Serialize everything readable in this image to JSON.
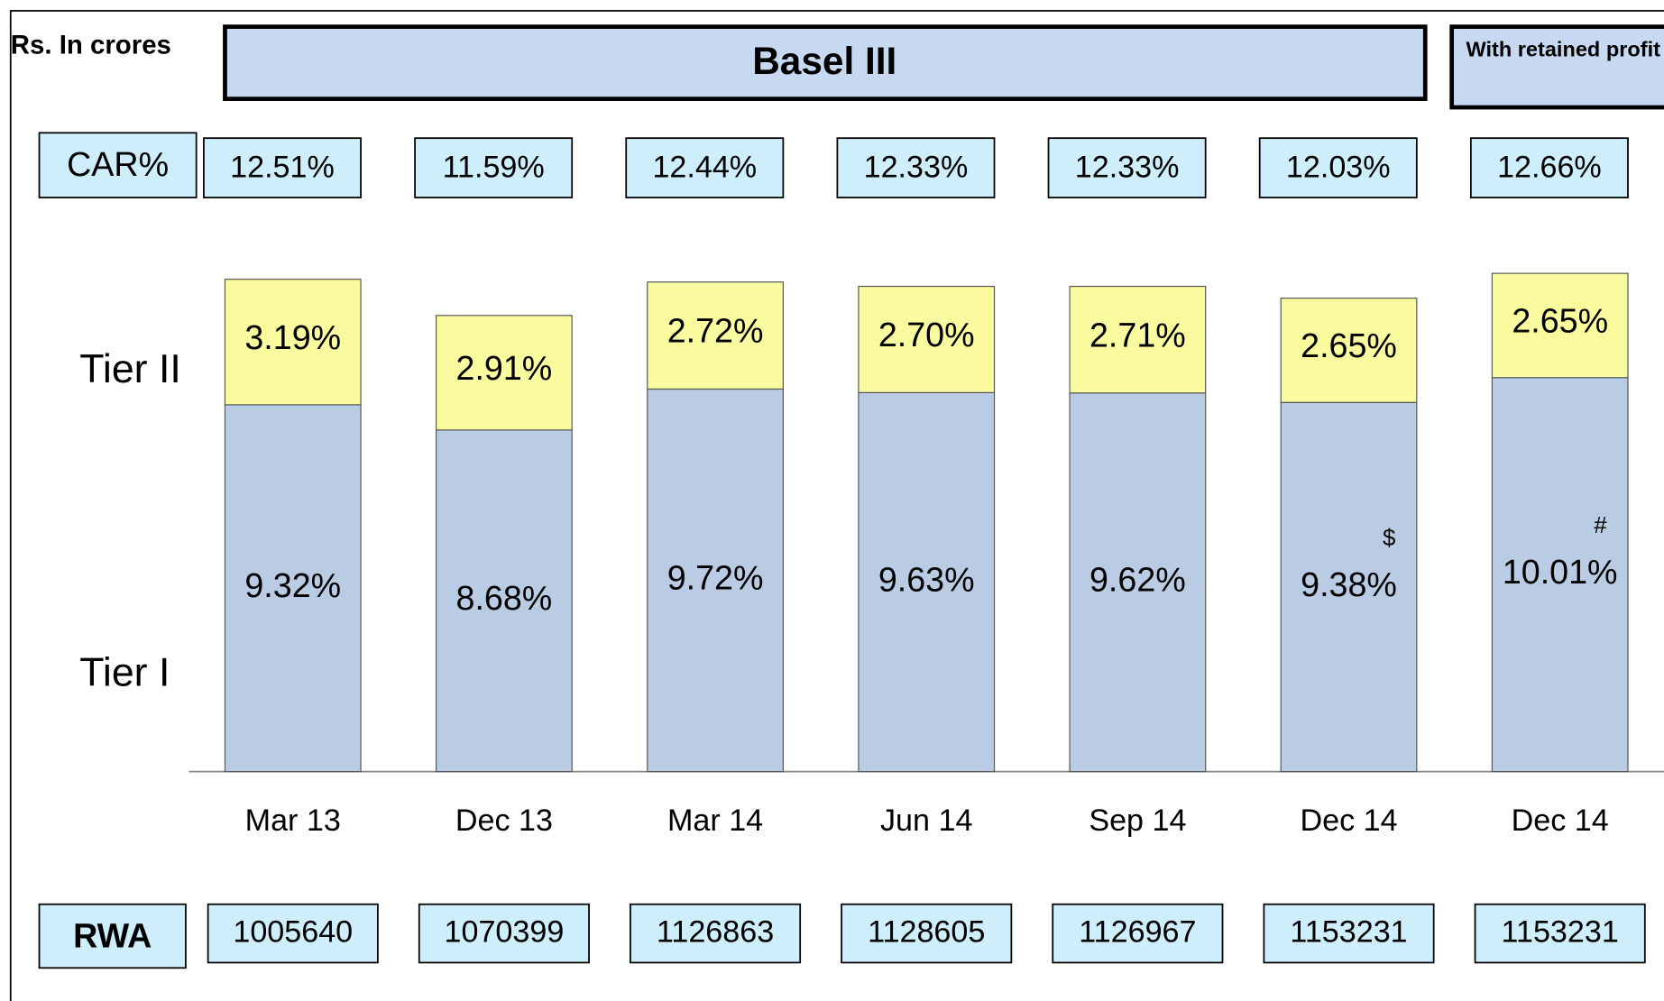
{
  "chart_data": {
    "type": "bar",
    "stacked": true,
    "unit_label": "Rs. In crores",
    "title": "Basel III",
    "note": "With retained profit",
    "categories": [
      "Mar 13",
      "Dec 13",
      "Mar 14",
      "Jun 14",
      "Sep 14",
      "Dec 14",
      "Dec 14"
    ],
    "series": [
      {
        "name": "Tier I",
        "color": "#b9cce4",
        "values": [
          9.32,
          8.68,
          9.72,
          9.63,
          9.62,
          9.38,
          10.01
        ],
        "value_labels": [
          "9.32%",
          "8.68%",
          "9.72%",
          "9.63%",
          "9.62%",
          "9.38%",
          "10.01%"
        ]
      },
      {
        "name": "Tier II",
        "color": "#fafa9e",
        "values": [
          3.19,
          2.91,
          2.72,
          2.7,
          2.71,
          2.65,
          2.65
        ],
        "value_labels": [
          "3.19%",
          "2.91%",
          "2.72%",
          "2.70%",
          "2.71%",
          "2.65%",
          "2.65%"
        ]
      }
    ],
    "markers": [
      null,
      null,
      null,
      null,
      null,
      "$",
      "#"
    ],
    "car": {
      "label": "CAR%",
      "values": [
        12.51,
        11.59,
        12.44,
        12.33,
        12.33,
        12.03,
        12.66
      ],
      "value_labels": [
        "12.51%",
        "11.59%",
        "12.44%",
        "12.33%",
        "12.33%",
        "12.03%",
        "12.66%"
      ]
    },
    "rwa": {
      "label": "RWA",
      "values": [
        1005640,
        1070399,
        1126863,
        1128605,
        1126967,
        1153231,
        1153231
      ]
    }
  }
}
